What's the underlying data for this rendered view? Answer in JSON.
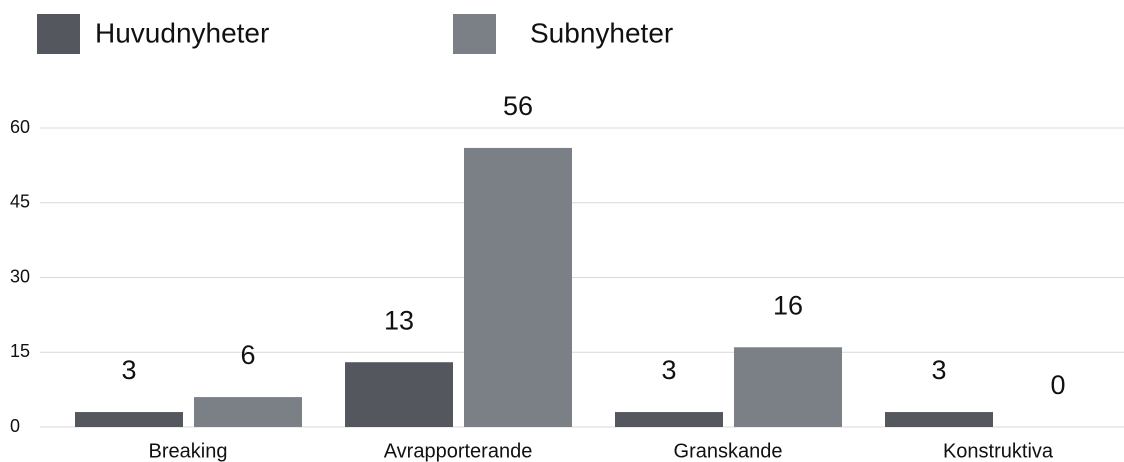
{
  "chart_data": {
    "type": "bar",
    "categories": [
      "Breaking",
      "Avrapporterande",
      "Granskande",
      "Konstruktiva"
    ],
    "series": [
      {
        "name": "Huvudnyheter",
        "color": "#54575e",
        "values": [
          3,
          13,
          3,
          3
        ]
      },
      {
        "name": "Subnyheter",
        "color": "#7b8087",
        "values": [
          6,
          56,
          16,
          0
        ]
      }
    ],
    "ylim": [
      0,
      60
    ],
    "yticks": [
      0,
      15,
      30,
      45,
      60
    ],
    "grid": true,
    "legend": "top"
  }
}
